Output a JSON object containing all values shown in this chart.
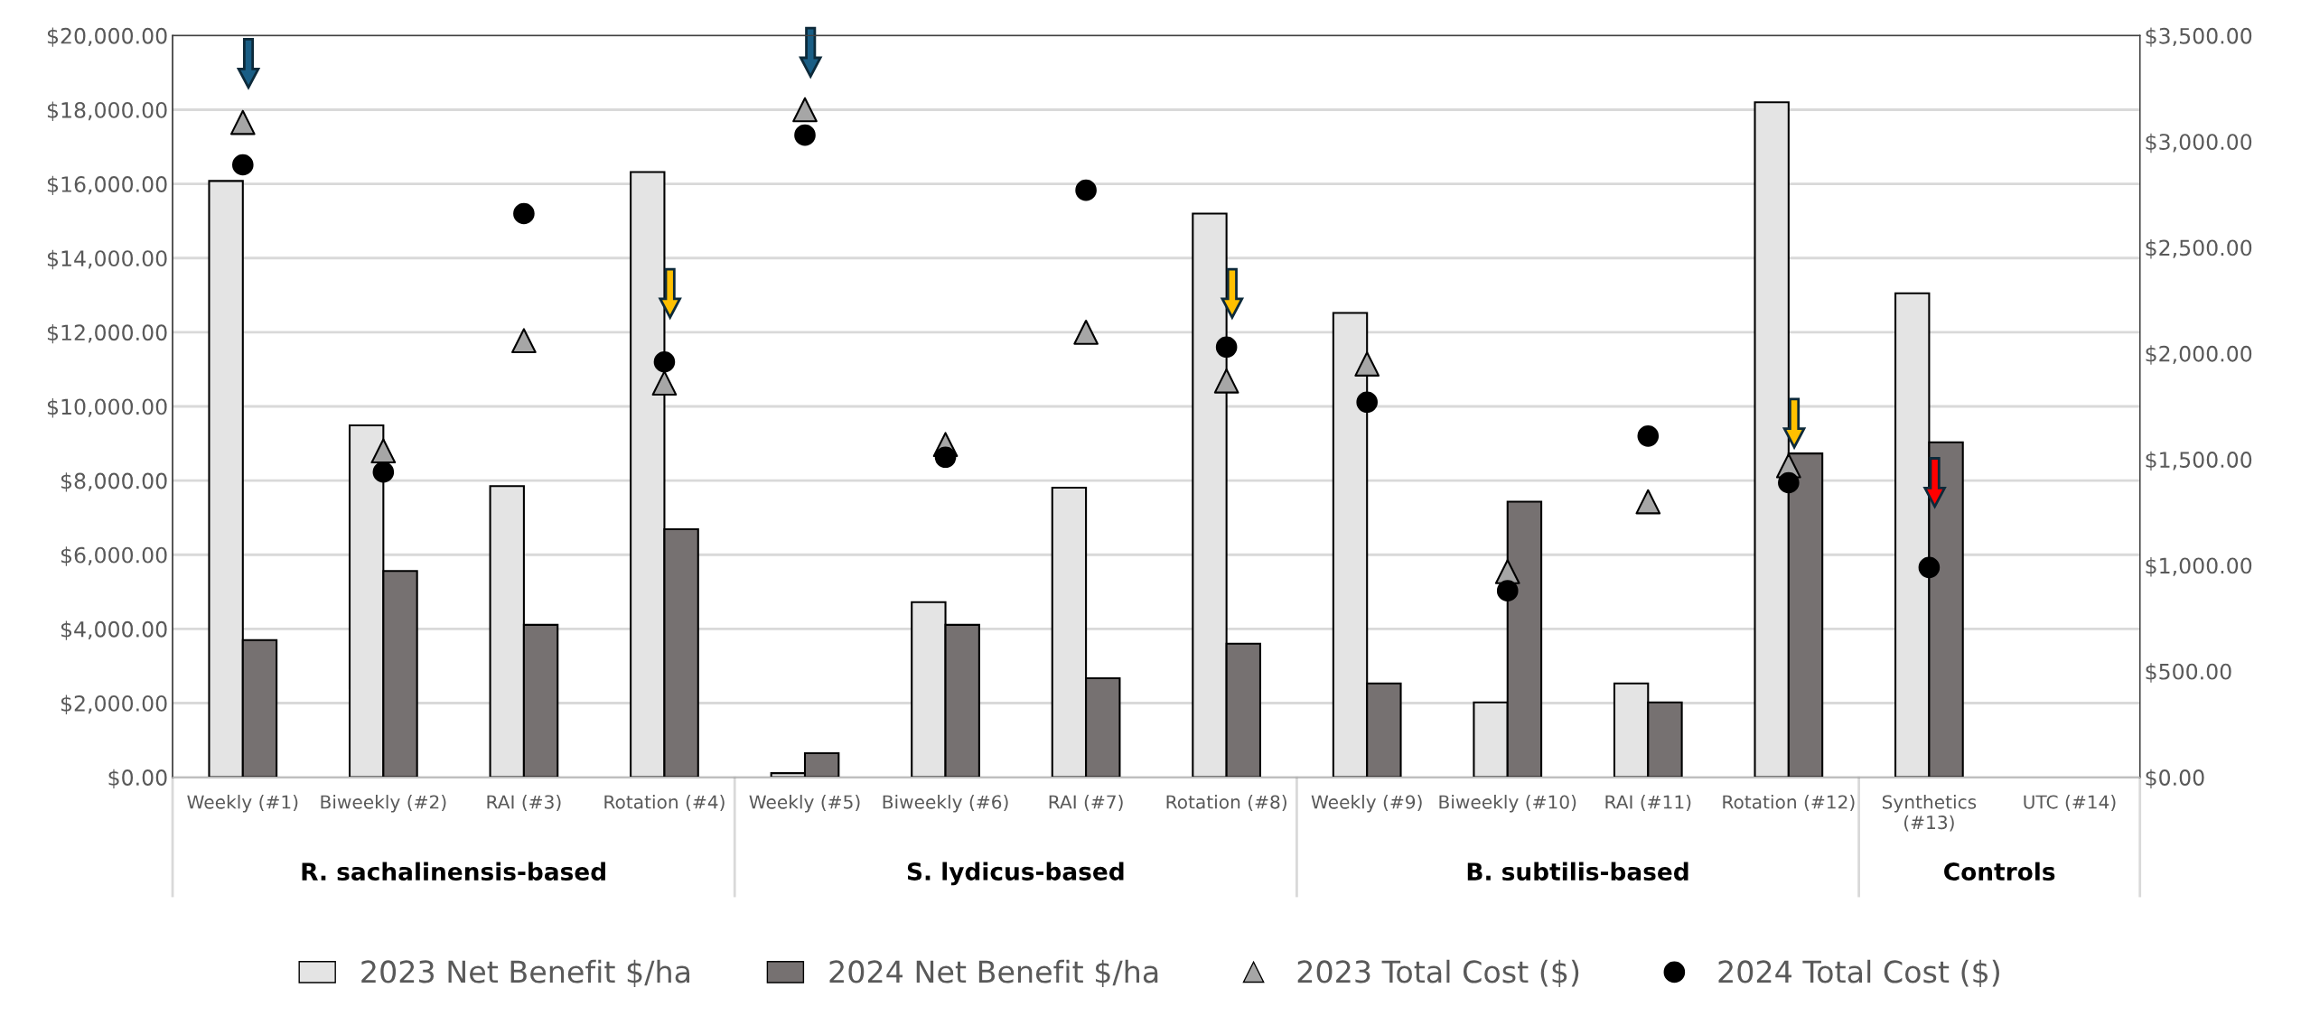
{
  "chart_data": {
    "type": "bar",
    "categories": [
      "Weekly (#1)",
      "Biweekly (#2)",
      "RAI (#3)",
      "Rotation (#4)",
      "Weekly (#5)",
      "Biweekly (#6)",
      "RAI (#7)",
      "Rotation (#8)",
      "Weekly (#9)",
      "Biweekly (#10)",
      "RAI (#11)",
      "Rotation (#12)",
      "Synthetics\n(#13)",
      "UTC (#14)"
    ],
    "series": [
      {
        "name": "2023 Net Benefit $/ha",
        "color": "#e4e4e4",
        "values": [
          16080,
          9490,
          7850,
          16320,
          110,
          4720,
          7810,
          15200,
          12520,
          2020,
          2530,
          18200,
          13050,
          null
        ]
      },
      {
        "name": "2024 Net Benefit $/ha",
        "color": "#767171",
        "values": [
          3700,
          5560,
          4110,
          6690,
          650,
          4110,
          2670,
          3600,
          2530,
          7430,
          2020,
          8730,
          9030,
          null
        ]
      },
      {
        "name": "2023 Total Cost ($)",
        "type": "scatter",
        "axis": "y2",
        "marker": "triangle",
        "color": "#a6a6a6",
        "values": [
          3090,
          1540,
          2060,
          1860,
          3150,
          1570,
          2100,
          1870,
          1950,
          970,
          1300,
          1470,
          null,
          null
        ]
      },
      {
        "name": "2024 Total Cost ($)",
        "type": "scatter",
        "axis": "y2",
        "marker": "circle",
        "color": "#000000",
        "values": [
          2890,
          1440,
          2660,
          1960,
          3030,
          1510,
          2770,
          2030,
          1770,
          880,
          1610,
          1390,
          990,
          null
        ]
      }
    ],
    "ylim": [
      0,
      20000
    ],
    "yticks": [
      {
        "value": 0,
        "label": "$0.00"
      },
      {
        "value": 2000,
        "label": "$2,000.00"
      },
      {
        "value": 4000,
        "label": "$4,000.00"
      },
      {
        "value": 6000,
        "label": "$6,000.00"
      },
      {
        "value": 8000,
        "label": "$8,000.00"
      },
      {
        "value": 10000,
        "label": "$10,000.00"
      },
      {
        "value": 12000,
        "label": "$12,000.00"
      },
      {
        "value": 14000,
        "label": "$14,000.00"
      },
      {
        "value": 16000,
        "label": "$16,000.00"
      },
      {
        "value": 18000,
        "label": "$18,000.00"
      },
      {
        "value": 20000,
        "label": "$20,000.00"
      }
    ],
    "y2lim": [
      0,
      3500
    ],
    "y2ticks": [
      {
        "value": 0,
        "label": "$0.00"
      },
      {
        "value": 500,
        "label": "$500.00"
      },
      {
        "value": 1000,
        "label": "$1,000.00"
      },
      {
        "value": 1500,
        "label": "$1,500.00"
      },
      {
        "value": 2000,
        "label": "$2,000.00"
      },
      {
        "value": 2500,
        "label": "$2,500.00"
      },
      {
        "value": 3000,
        "label": "$3,000.00"
      },
      {
        "value": 3500,
        "label": "$3,500.00"
      }
    ],
    "annotations": [
      "R. sachalinensis-based",
      "S. lydicus-based",
      "B. subtilis-based",
      "Controls"
    ],
    "grid": "y",
    "legend": "bottom"
  }
}
